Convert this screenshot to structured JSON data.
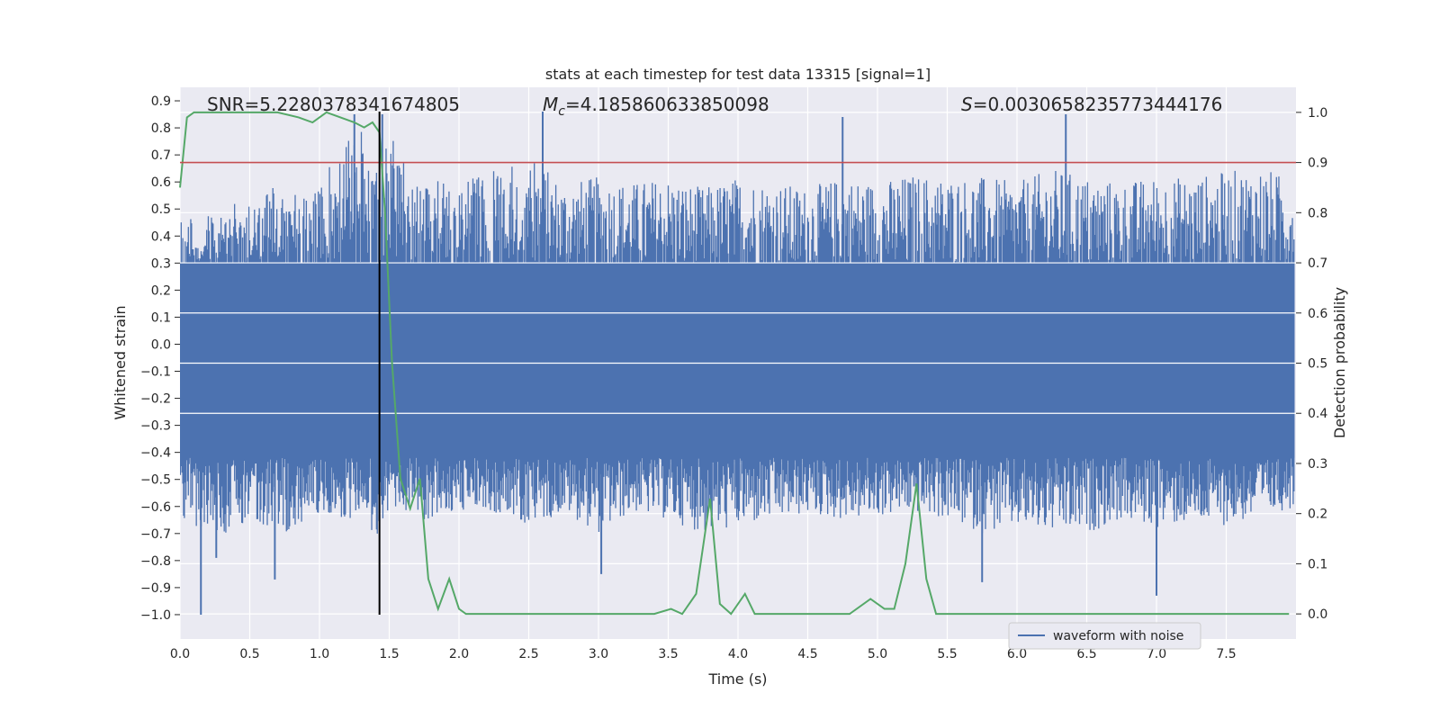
{
  "chart_data": {
    "type": "line",
    "title": "stats at each timestep for test data 13315 [signal=1]",
    "xlabel": "Time (s)",
    "ylabel_left": "Whitened strain",
    "ylabel_right": "Detection probability",
    "xlim": [
      0.0,
      8.0
    ],
    "ylim_left": [
      -1.09,
      0.95
    ],
    "ylim_right": [
      -0.05,
      1.05
    ],
    "xticks": [
      "0.0",
      "0.5",
      "1.0",
      "1.5",
      "2.0",
      "2.5",
      "3.0",
      "3.5",
      "4.0",
      "4.5",
      "5.0",
      "5.5",
      "6.0",
      "6.5",
      "7.0",
      "7.5"
    ],
    "yticks_left": [
      "0.9",
      "0.8",
      "0.7",
      "0.6",
      "0.5",
      "0.4",
      "0.3",
      "0.2",
      "0.1",
      "0.0",
      "−0.1",
      "−0.2",
      "−0.3",
      "−0.4",
      "−0.5",
      "−0.6",
      "−0.7",
      "−0.8",
      "−0.9",
      "−1.0"
    ],
    "yticks_right": [
      "1.0",
      "0.9",
      "0.8",
      "0.7",
      "0.6",
      "0.5",
      "0.4",
      "0.3",
      "0.2",
      "0.1",
      "0.0"
    ],
    "grid": true,
    "legend_position": "bottom-right",
    "annotations": {
      "snr": "SNR=5.2280378341674805",
      "mc_symbol": "M",
      "mc_sub": "c",
      "mc_value": "=4.185860633850098",
      "s_symbol": "S",
      "s_value": "=0.0030658235773444176"
    },
    "threshold_line": {
      "axis": "right",
      "value": 0.9,
      "color": "#c44e52"
    },
    "event_line": {
      "x": 1.43,
      "ymin": -1.0,
      "ymax": 0.86,
      "color": "#000000"
    },
    "waveform_envelope": {
      "name": "waveform with noise",
      "color": "#4c72b0",
      "x": [
        0.0,
        0.25,
        0.5,
        0.75,
        1.0,
        1.25,
        1.43,
        1.5,
        1.75,
        2.0,
        2.25,
        2.5,
        2.75,
        3.0,
        3.25,
        3.5,
        3.75,
        4.0,
        4.25,
        4.5,
        4.75,
        5.0,
        5.25,
        5.5,
        5.75,
        6.0,
        6.25,
        6.5,
        6.75,
        7.0,
        7.25,
        7.5,
        7.75,
        8.0
      ],
      "upper": [
        0.45,
        0.5,
        0.55,
        0.6,
        0.58,
        0.85,
        0.62,
        0.8,
        0.62,
        0.6,
        0.65,
        0.7,
        0.6,
        0.62,
        0.6,
        0.62,
        0.58,
        0.62,
        0.6,
        0.58,
        0.62,
        0.6,
        0.63,
        0.62,
        0.62,
        0.6,
        0.65,
        0.62,
        0.6,
        0.62,
        0.62,
        0.64,
        0.66,
        0.6
      ],
      "lower": [
        -0.65,
        -0.72,
        -0.65,
        -0.7,
        -0.62,
        -0.65,
        -0.72,
        -0.6,
        -0.65,
        -0.62,
        -0.62,
        -0.68,
        -0.62,
        -0.7,
        -0.62,
        -0.65,
        -0.7,
        -0.68,
        -0.65,
        -0.63,
        -0.65,
        -0.64,
        -0.62,
        -0.65,
        -0.7,
        -0.68,
        -0.7,
        -0.7,
        -0.65,
        -0.68,
        -0.66,
        -0.67,
        -0.64,
        -0.6
      ]
    },
    "waveform_spikes": {
      "x": [
        0.15,
        0.26,
        0.68,
        1.25,
        1.45,
        2.6,
        3.02,
        4.75,
        5.75,
        6.35,
        7.0
      ],
      "y": [
        -1.0,
        -0.79,
        -0.87,
        0.85,
        0.85,
        0.86,
        -0.85,
        0.84,
        -0.88,
        0.85,
        -0.93
      ]
    },
    "detection_probability": {
      "color": "#55a868",
      "x": [
        0.0,
        0.05,
        0.1,
        0.3,
        0.5,
        0.7,
        0.85,
        0.95,
        1.05,
        1.15,
        1.25,
        1.32,
        1.38,
        1.43,
        1.47,
        1.52,
        1.58,
        1.65,
        1.72,
        1.78,
        1.85,
        1.93,
        2.0,
        2.05,
        2.3,
        2.6,
        2.9,
        3.2,
        3.4,
        3.52,
        3.6,
        3.7,
        3.8,
        3.87,
        3.95,
        4.05,
        4.12,
        4.2,
        4.4,
        4.6,
        4.8,
        4.95,
        5.05,
        5.12,
        5.2,
        5.28,
        5.35,
        5.42,
        5.5,
        5.6,
        5.8,
        6.0,
        6.2,
        6.4,
        6.6,
        6.8,
        7.0,
        7.2,
        7.4,
        7.6,
        7.8,
        7.95
      ],
      "y": [
        0.85,
        0.99,
        1.0,
        1.0,
        1.0,
        1.0,
        0.99,
        0.98,
        1.0,
        0.99,
        0.98,
        0.97,
        0.98,
        0.96,
        0.8,
        0.5,
        0.27,
        0.21,
        0.27,
        0.07,
        0.01,
        0.07,
        0.01,
        0.0,
        0.0,
        0.0,
        0.0,
        0.0,
        0.0,
        0.01,
        0.0,
        0.04,
        0.23,
        0.02,
        0.0,
        0.04,
        0.0,
        0.0,
        0.0,
        0.0,
        0.0,
        0.03,
        0.01,
        0.01,
        0.1,
        0.26,
        0.07,
        0.0,
        0.0,
        0.0,
        0.0,
        0.0,
        0.0,
        0.0,
        0.0,
        0.0,
        0.0,
        0.0,
        0.0,
        0.0,
        0.0,
        0.0
      ]
    }
  }
}
